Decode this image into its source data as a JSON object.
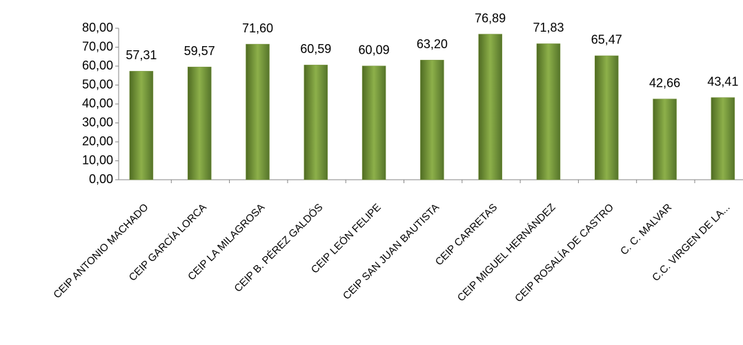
{
  "chart_data": {
    "type": "bar",
    "categories": [
      "CEIP ANTONIO MACHADO",
      "CEIP GARCÍA LORCA",
      "CEIP LA MILAGROSA",
      "CEIP B. PÉREZ GALDÓS",
      "CEIP LEÓN FELIPE",
      "CEIP SAN JUAN BAUTISTA",
      "CEIP CARRETAS",
      "CEIP MIGUEL HERNÁNDEZ",
      "CEIP ROSALÍA DE CASTRO",
      "C. C.  MALVAR",
      "C.C. VIRGEN DE LA..."
    ],
    "values": [
      57.31,
      59.57,
      71.6,
      60.59,
      60.09,
      63.2,
      76.89,
      71.83,
      65.47,
      42.66,
      43.41
    ],
    "value_labels": [
      "57,31",
      "59,57",
      "71,60",
      "60,59",
      "60,09",
      "63,20",
      "76,89",
      "71,83",
      "65,47",
      "42,66",
      "43,41"
    ],
    "color": "#77933c",
    "ylim": [
      0,
      80
    ],
    "yticks": [
      {
        "value": 0,
        "label": "0,00"
      },
      {
        "value": 10,
        "label": "10,00"
      },
      {
        "value": 20,
        "label": "20,00"
      },
      {
        "value": 30,
        "label": "30,00"
      },
      {
        "value": 40,
        "label": "40,00"
      },
      {
        "value": 50,
        "label": "50,00"
      },
      {
        "value": 60,
        "label": "60,00"
      },
      {
        "value": 70,
        "label": "70,00"
      },
      {
        "value": 80,
        "label": "80,00"
      }
    ],
    "grid": false
  }
}
